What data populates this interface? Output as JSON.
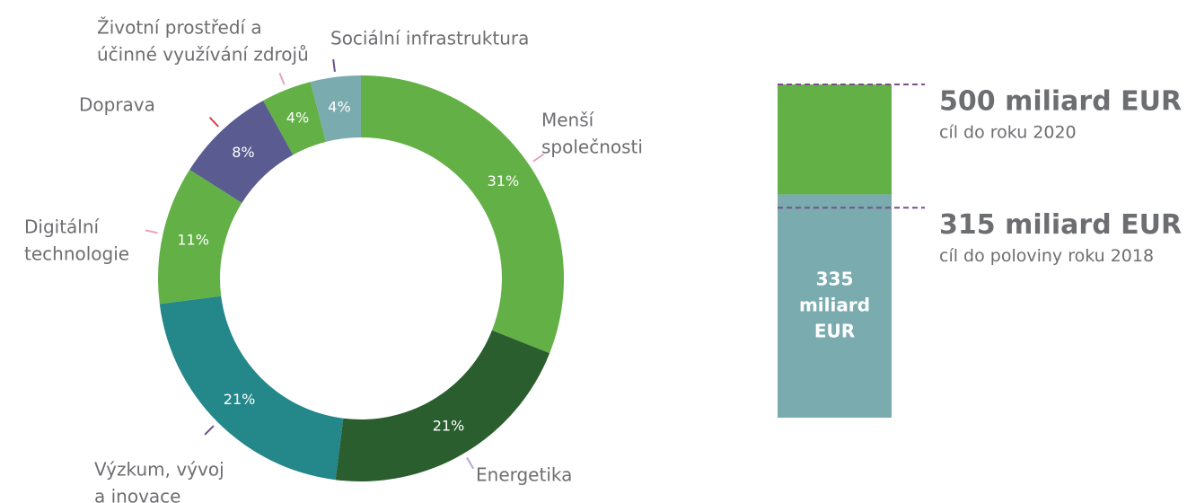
{
  "chart_data": [
    {
      "type": "donut",
      "categories": [
        [
          "Menší",
          "společnosti"
        ],
        [
          "Energetika"
        ],
        [
          "Výzkum, vývoj",
          "a inovace"
        ],
        [
          "Digitální",
          "technologie"
        ],
        [
          "Doprava"
        ],
        [
          "Životní prostředí a",
          "účinné využívání zdrojů"
        ],
        [
          "Sociální infrastruktura"
        ]
      ],
      "values": [
        31,
        21,
        21,
        11,
        8,
        4,
        4
      ],
      "value_labels": [
        "31%",
        "21%",
        "21%",
        "11%",
        "8%",
        "4%",
        "4%"
      ],
      "colors": [
        "#62b046",
        "#2a5e2e",
        "#24878a",
        "#62b046",
        "#5a5b91",
        "#62b046",
        "#7aabaf"
      ]
    },
    {
      "type": "bar",
      "stacked": true,
      "ylim": [
        0,
        500
      ],
      "series": [
        {
          "color": "#7aabaf",
          "values": [
            335
          ],
          "value_labels": [
            "335 miliard EUR"
          ]
        },
        {
          "color": "#62b046",
          "values": [
            165
          ]
        }
      ],
      "annotations": [
        {
          "value": 500,
          "label": "500 miliard EUR",
          "sublabel": "cíl do roku 2020"
        },
        {
          "value": 315,
          "label": "315 miliard EUR",
          "sublabel": "cíl do poloviny roku 2018"
        }
      ]
    }
  ]
}
